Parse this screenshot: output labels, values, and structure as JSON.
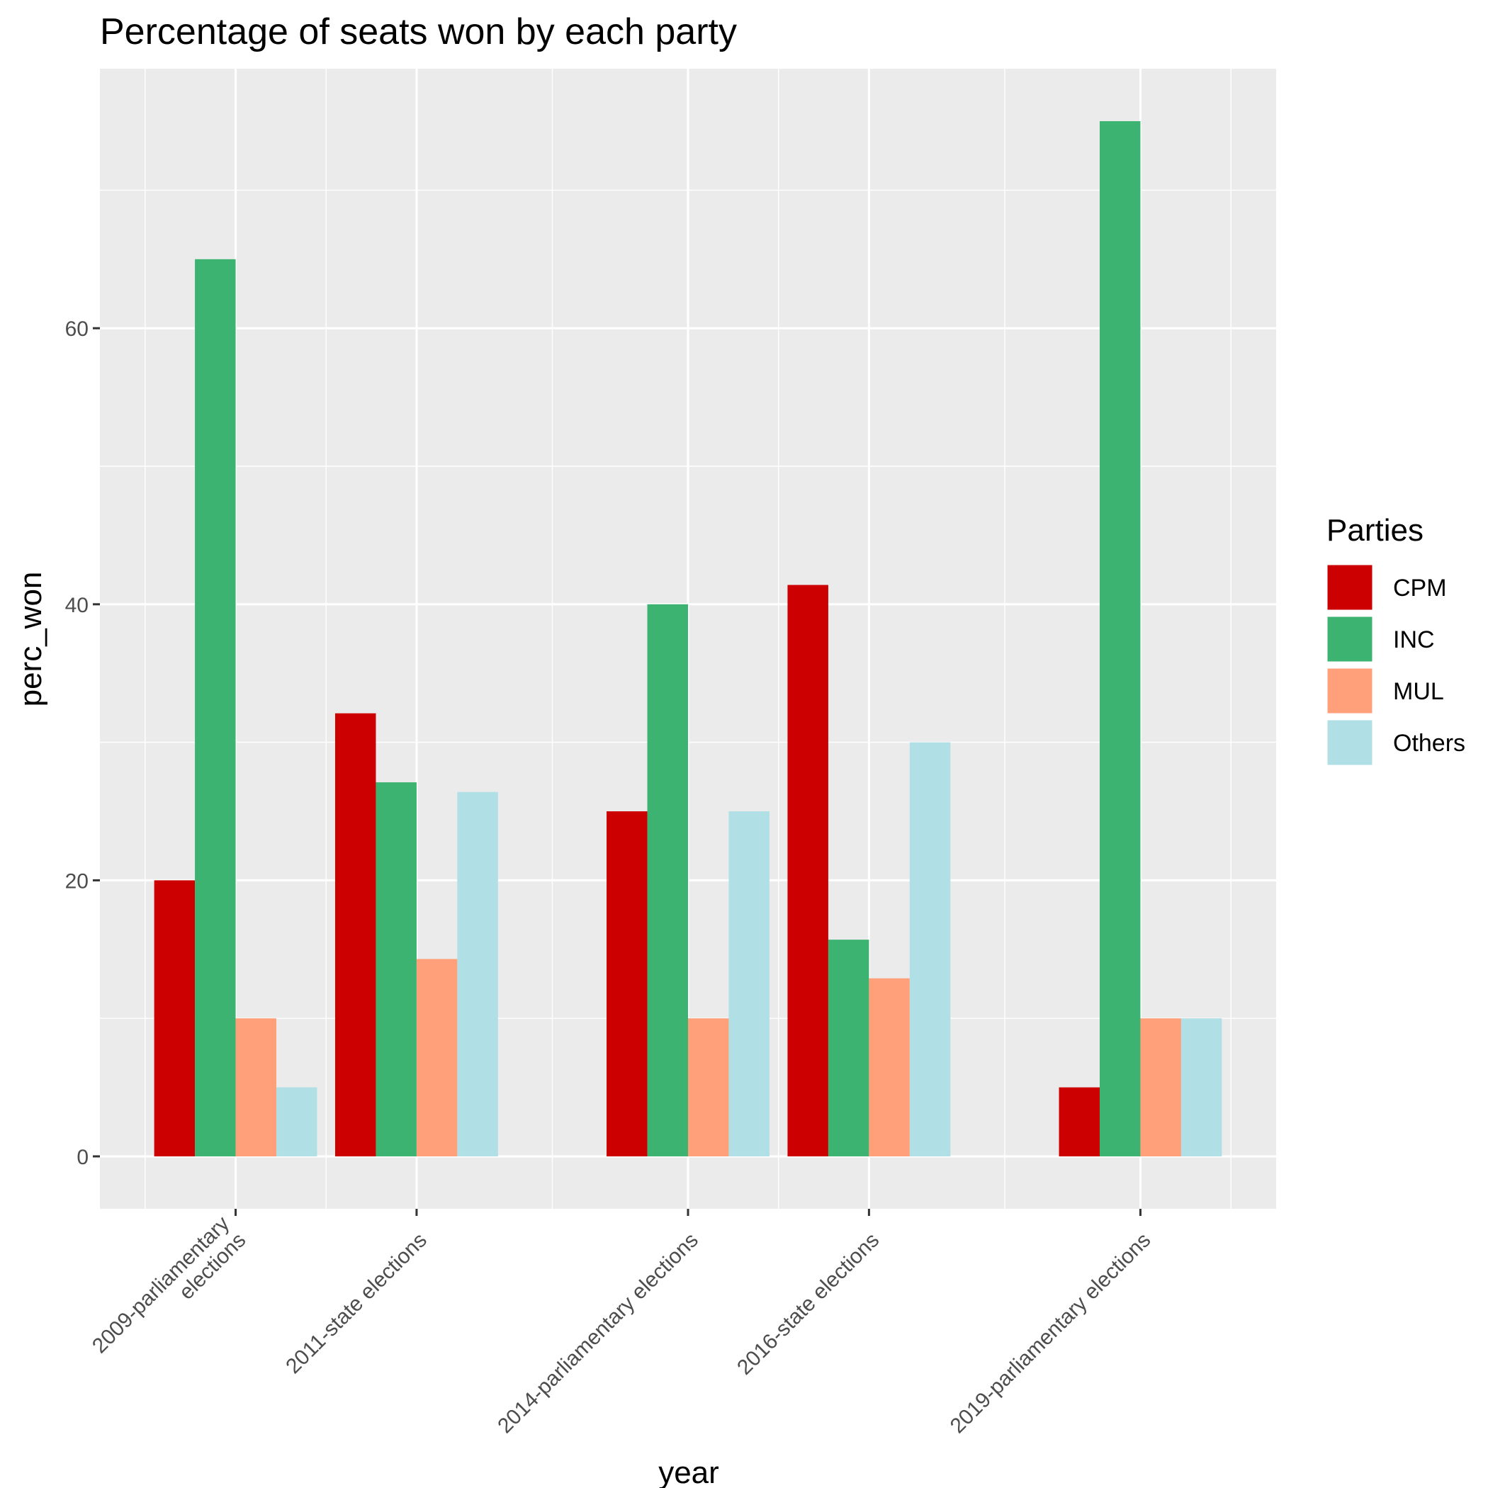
{
  "chart_data": {
    "type": "bar",
    "title": "Percentage of seats won by each party",
    "xlabel": "year",
    "ylabel": "perc_won",
    "categories": [
      "2009-parliamentary elections",
      "2011-state elections",
      "2014-parliamentary elections",
      "2016-state elections",
      "2019-parliamentary elections"
    ],
    "category_label_lines": [
      [
        "2009-parliamentary",
        "elections"
      ],
      [
        "2011-state elections"
      ],
      [
        "2014-parliamentary elections"
      ],
      [
        "2016-state elections"
      ],
      [
        "2019-parliamentary elections"
      ]
    ],
    "x_positions": [
      1.35,
      2.15,
      3.35,
      4.15,
      5.35
    ],
    "x_range": [
      0.75,
      5.95
    ],
    "y_range": [
      -3.8,
      78.8
    ],
    "y_ticks": [
      0,
      20,
      40,
      60
    ],
    "y_tick_labels": [
      "0",
      "20",
      "40",
      "60"
    ],
    "series": [
      {
        "name": "CPM",
        "color": "#CC0000",
        "values": [
          20.0,
          32.1,
          25.0,
          41.4,
          5.0
        ]
      },
      {
        "name": "INC",
        "color": "#3CB371",
        "values": [
          65.0,
          27.1,
          40.0,
          15.7,
          75.0
        ]
      },
      {
        "name": "MUL",
        "color": "#FFA07A",
        "values": [
          10.0,
          14.3,
          10.0,
          12.9,
          10.0
        ]
      },
      {
        "name": "Others",
        "color": "#B0DFE5",
        "values": [
          5.0,
          26.4,
          25.0,
          30.0,
          10.0
        ]
      }
    ],
    "bar_width": 0.72,
    "grid": true,
    "panel_color": "#EBEBEB",
    "legend": {
      "title": "Parties",
      "position": "right"
    }
  }
}
